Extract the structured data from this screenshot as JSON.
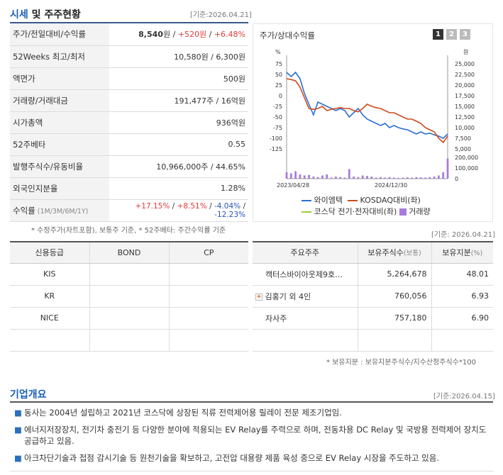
{
  "quote_section": {
    "title_part1": "시세",
    "title_part2": " 및 주주현황",
    "stamp": "[기준:2026.04.21]",
    "rows": [
      {
        "label": "주가/전일대비/수익률",
        "price": "8,540",
        "unit": "원",
        "sep1": " / ",
        "change": "+520원",
        "sep2": " / ",
        "pct": "+6.48%"
      },
      {
        "label": "52Weeks 최고/최저",
        "value": "10,580원 / 6,300원"
      },
      {
        "label": "액면가",
        "value": "500원"
      },
      {
        "label": "거래량/거래대금",
        "value": "191,477주 / 16억원"
      },
      {
        "label": "시가총액",
        "value": "936억원"
      },
      {
        "label": "52주베타",
        "value": "0.55"
      },
      {
        "label": "발행주식수/유동비율",
        "value": "10,966,000주 / 44.65%"
      },
      {
        "label": "외국인지분율",
        "value": "1.28%"
      }
    ],
    "returns_row": {
      "label": "수익률",
      "label_suffix": " (1M/3M/6M/1Y)",
      "r1": "+17.15%",
      "r2": "+8.51%",
      "r3": "-4.04%",
      "r4": "-12.23%",
      "sep": "/ "
    },
    "footnote": "* 수정주가(차트포함), 보통주 기준, * 52주베타: 주간수익률 기준"
  },
  "chart_panel": {
    "title": "주가/상대수익률",
    "tabs": [
      "1",
      "2",
      "3"
    ],
    "left_unit": "%",
    "right_unit": "원",
    "y_left_ticks": [
      "75",
      "50",
      "25",
      "0",
      "-25",
      "-50",
      "-75",
      "-100",
      "-125"
    ],
    "y_right_ticks": [
      "25,000",
      "22,500",
      "20,000",
      "17,500",
      "15,000",
      "12,500",
      "10,000",
      "7,500",
      "5,000"
    ],
    "vol_ticks": [
      "200,000",
      "100,000",
      "0"
    ],
    "x_labels": [
      "2023/04/28",
      "2024/12/30"
    ],
    "legend": [
      {
        "name": "와이엠텍",
        "color": "#2a6fd6",
        "kind": "line"
      },
      {
        "name": "KOSDAQ대비(좌)",
        "color": "#d04a1c",
        "kind": "line"
      },
      {
        "name": "코스닥 전기·전자대비(좌)",
        "color": "#9acd32",
        "kind": "line"
      },
      {
        "name": "거래량",
        "color": "#a77bd9",
        "kind": "box"
      }
    ]
  },
  "chart_data": {
    "type": "line",
    "x": [
      "2023/04",
      "2023/05",
      "2023/06",
      "2023/07",
      "2023/08",
      "2023/09",
      "2023/10",
      "2023/11",
      "2023/12",
      "2024/01",
      "2024/02",
      "2024/03",
      "2024/04",
      "2024/05",
      "2024/06",
      "2024/07",
      "2024/08",
      "2024/09",
      "2024/10",
      "2024/11",
      "2024/12",
      "2025/01",
      "2025/02",
      "2025/03",
      "2025/04",
      "2025/05",
      "2025/06",
      "2025/07",
      "2025/08",
      "2025/09",
      "2025/10",
      "2025/11",
      "2025/12",
      "2026/01",
      "2026/02",
      "2026/03",
      "2026/04"
    ],
    "series": [
      {
        "name": "와이엠텍",
        "values": [
          55,
          45,
          55,
          40,
          5,
          -20,
          -45,
          -15,
          -20,
          -25,
          -30,
          -35,
          -30,
          -35,
          -50,
          -40,
          -30,
          -45,
          -55,
          -60,
          -65,
          -70,
          -65,
          -75,
          -70,
          -75,
          -78,
          -80,
          -85,
          -90,
          -85,
          -90,
          -88,
          -92,
          -95,
          -100,
          -90
        ]
      },
      {
        "name": "KOSDAQ대비(좌)",
        "values": [
          40,
          38,
          35,
          20,
          -5,
          -30,
          -32,
          -30,
          -25,
          -35,
          -32,
          -30,
          -28,
          -30,
          -30,
          -35,
          -38,
          -30,
          -20,
          -25,
          -28,
          -30,
          -35,
          -40,
          -40,
          -45,
          -50,
          -55,
          -55,
          -60,
          -65,
          -75,
          -80,
          -85,
          -100,
          -110,
          -95
        ]
      }
    ],
    "volume_series": {
      "name": "거래량",
      "values": [
        60000,
        50000,
        70000,
        40000,
        30000,
        35000,
        20000,
        15000,
        30000,
        40000,
        10000,
        20000,
        15000,
        10000,
        90000,
        20000,
        15000,
        30000,
        25000,
        20000,
        10000,
        15000,
        10000,
        15000,
        10000,
        8000,
        10000,
        12000,
        10000,
        15000,
        12000,
        10000,
        15000,
        20000,
        30000,
        60000,
        190000
      ]
    },
    "y_left_range": [
      -125,
      75
    ],
    "y_right_range": [
      5000,
      25000
    ],
    "volume_range": [
      0,
      200000
    ],
    "legend_position": "bottom"
  },
  "credit_table": {
    "headers": [
      "신용등급",
      "BOND",
      "CP"
    ],
    "rows": [
      [
        "KIS",
        "",
        ""
      ],
      [
        "KR",
        "",
        ""
      ],
      [
        "NICE",
        "",
        ""
      ],
      [
        "",
        "",
        ""
      ]
    ]
  },
  "holders_section": {
    "stamp": "[기준: 2026.04.21]",
    "headers": [
      "주요주주",
      "보유주식수",
      "(보통)",
      "보유지분",
      "(%)"
    ],
    "rows": [
      {
        "name": "캑터스바이아웃제9호…",
        "shares": "5,264,678",
        "pct": "48.01",
        "expand": false
      },
      {
        "name": "김홍기 외 4인",
        "shares": "760,056",
        "pct": "6.93",
        "expand": true
      },
      {
        "name": "자사주",
        "shares": "757,180",
        "pct": "6.90",
        "expand": false
      }
    ],
    "footnote": "* 보유지분 : 보유지분주식수/지수산정주식수*100"
  },
  "company_section": {
    "title": "기업개요",
    "stamp": "[기준:2026.04.15]",
    "bullets": [
      "동사는 2004년 설립하고 2021년 코스닥에 상장된 직류 전력제어용 릴레이 전문 제조기업임.",
      "에너지저장장치, 전기차 충전기 등 다양한 분야에 적용되는 EV Relay를 주력으로 하며, 전동차용 DC Relay 및 국방용 전력제어 장치도 공급하고 있음.",
      "아크차단기술과 접점 감시기술 등 원천기술을 확보하고, 고전압 대용량 제품 육성 중으로 EV Relay 시장을 주도하고 있음."
    ],
    "bullet_glyph": "■"
  }
}
